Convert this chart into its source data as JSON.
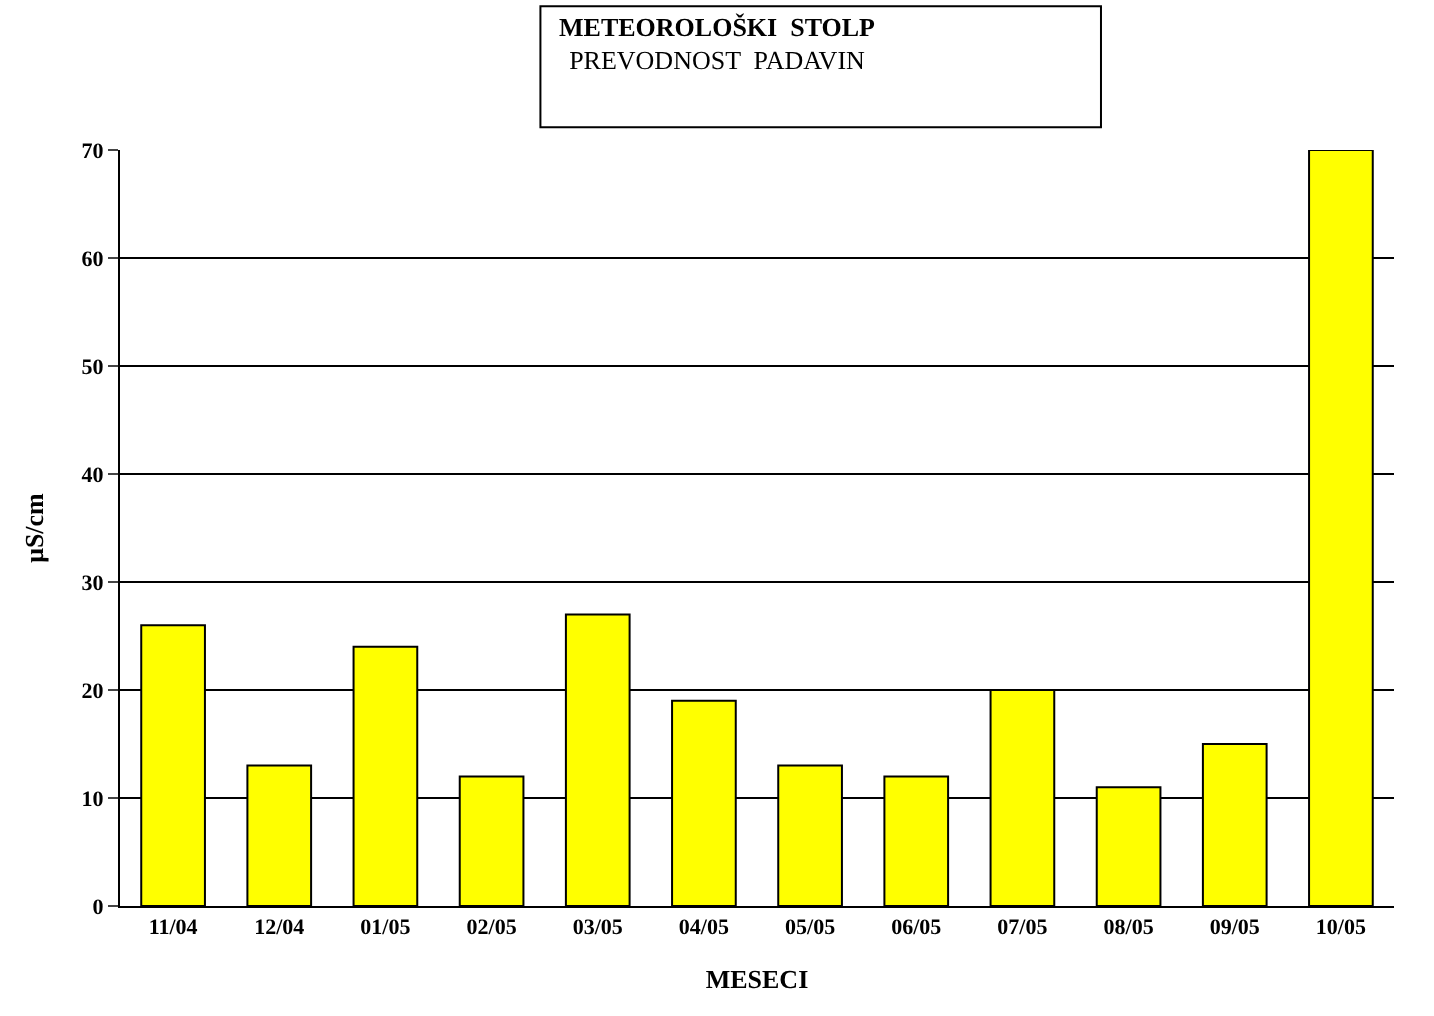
{
  "chart_data": {
    "type": "bar",
    "title": "METEOROLOŠKI  STOLP",
    "subtitle": "PREVODNOST  PADAVIN",
    "xlabel": "MESECI",
    "ylabel": "μS/cm",
    "categories": [
      "11/04",
      "12/04",
      "01/05",
      "02/05",
      "03/05",
      "04/05",
      "05/05",
      "06/05",
      "07/05",
      "08/05",
      "09/05",
      "10/05"
    ],
    "values": [
      26,
      13,
      24,
      12,
      27,
      19,
      13,
      12,
      20,
      11,
      15,
      70
    ],
    "color": "#ffff00",
    "ylim": [
      0,
      70
    ],
    "yticks": [
      0,
      10,
      20,
      30,
      40,
      50,
      60,
      70
    ],
    "grid": "y"
  }
}
